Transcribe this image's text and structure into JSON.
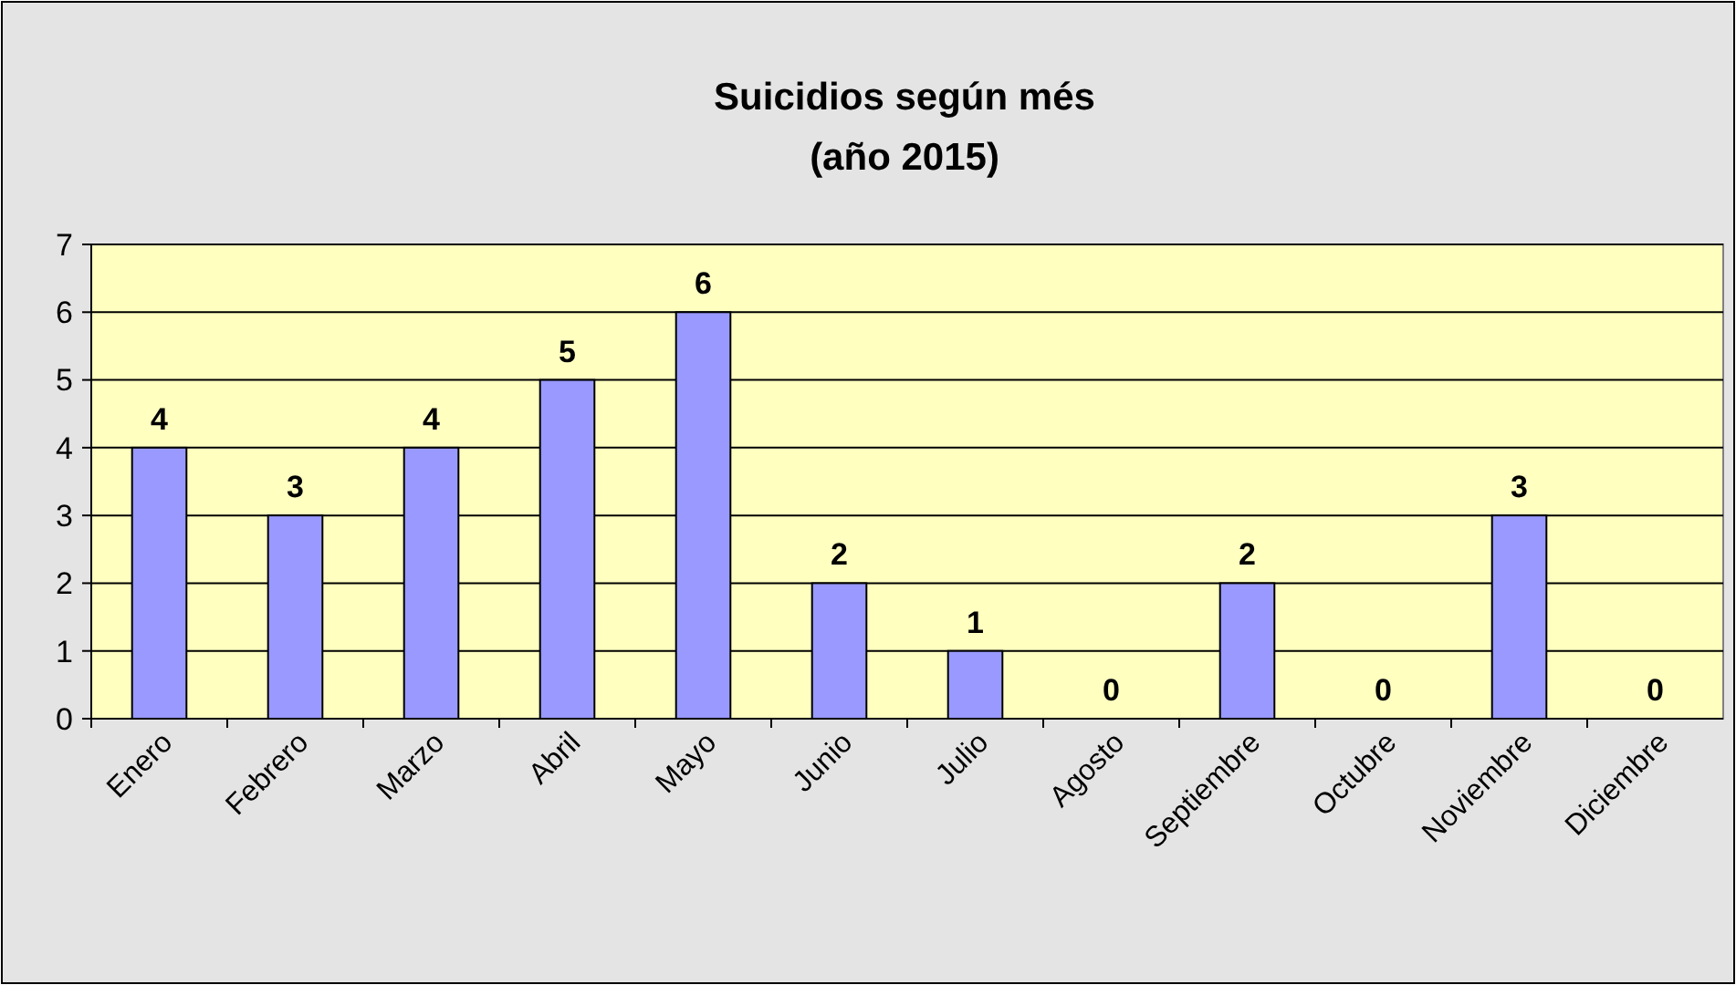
{
  "chart_data": {
    "type": "bar",
    "title": "Suicidios según més\n(año 2015)",
    "categories": [
      "Enero",
      "Febrero",
      "Marzo",
      "Abril",
      "Mayo",
      "Junio",
      "Julio",
      "Agosto",
      "Septiembre",
      "Octubre",
      "Noviembre",
      "Diciembre"
    ],
    "values": [
      4,
      3,
      4,
      5,
      6,
      2,
      1,
      0,
      2,
      0,
      3,
      0
    ],
    "color": "#9999ff",
    "ylim": [
      0,
      7
    ],
    "yticks": [
      0,
      1,
      2,
      3,
      4,
      5,
      6,
      7
    ],
    "grid": "y",
    "data_labels": true
  }
}
